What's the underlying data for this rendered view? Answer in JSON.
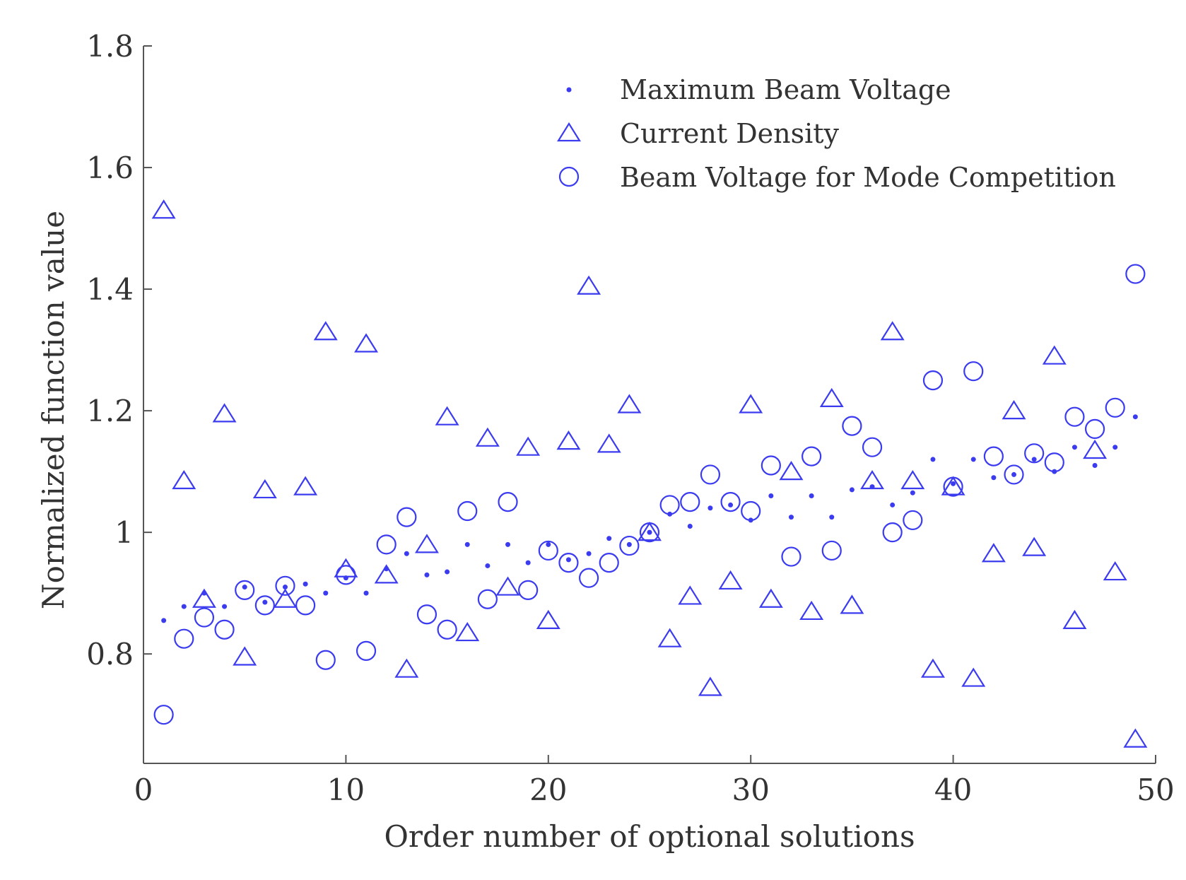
{
  "chart_data": {
    "type": "scatter",
    "title": "",
    "xlabel": "Order number of optional solutions",
    "ylabel": "Normalized function value",
    "xlim": [
      0,
      50
    ],
    "ylim": [
      0.62,
      1.8
    ],
    "xticks": [
      0,
      10,
      20,
      30,
      40,
      50
    ],
    "xtick_labels": [
      "0",
      "10",
      "20",
      "30",
      "40",
      "50"
    ],
    "yticks": [
      0.8,
      1.0,
      1.2,
      1.4,
      1.6,
      1.8
    ],
    "ytick_labels": [
      "0.8",
      "1",
      "1.2",
      "1.4",
      "1.6",
      "1.8"
    ],
    "grid": false,
    "legend_position": "top-right",
    "color": "#3b3bf0",
    "series": [
      {
        "name": "Maximum Beam Voltage",
        "marker": "dot",
        "x": [
          1,
          2,
          3,
          4,
          5,
          6,
          7,
          8,
          9,
          10,
          11,
          12,
          13,
          14,
          15,
          16,
          17,
          18,
          19,
          20,
          21,
          22,
          23,
          24,
          25,
          26,
          27,
          28,
          29,
          30,
          31,
          32,
          33,
          34,
          35,
          36,
          37,
          38,
          39,
          40,
          41,
          42,
          43,
          44,
          45,
          46,
          47,
          48,
          49
        ],
        "y": [
          0.855,
          0.878,
          0.9,
          0.878,
          0.91,
          0.885,
          0.91,
          0.915,
          0.9,
          0.925,
          0.9,
          0.94,
          0.965,
          0.93,
          0.935,
          0.98,
          0.945,
          0.98,
          0.95,
          0.98,
          0.955,
          0.965,
          0.99,
          0.98,
          1.0,
          1.03,
          1.01,
          1.04,
          1.045,
          1.02,
          1.06,
          1.025,
          1.06,
          1.025,
          1.07,
          1.075,
          1.045,
          1.065,
          1.12,
          1.08,
          1.12,
          1.09,
          1.095,
          1.12,
          1.1,
          1.14,
          1.11,
          1.14,
          1.19
        ]
      },
      {
        "name": "Current Density",
        "marker": "triangle",
        "x": [
          1,
          2,
          3,
          4,
          5,
          6,
          7,
          8,
          9,
          10,
          11,
          12,
          13,
          14,
          15,
          16,
          17,
          18,
          19,
          20,
          21,
          22,
          23,
          24,
          25,
          26,
          27,
          28,
          29,
          30,
          31,
          32,
          33,
          34,
          35,
          36,
          37,
          38,
          39,
          40,
          41,
          42,
          43,
          44,
          45,
          46,
          47,
          48,
          49
        ],
        "y": [
          1.53,
          1.085,
          0.89,
          1.195,
          0.795,
          1.07,
          0.89,
          1.075,
          1.33,
          0.94,
          1.31,
          0.93,
          0.775,
          0.98,
          1.19,
          0.835,
          1.155,
          0.91,
          1.14,
          0.855,
          1.15,
          1.405,
          1.145,
          1.21,
          1.0,
          0.825,
          0.895,
          0.745,
          0.92,
          1.21,
          0.89,
          1.1,
          0.87,
          1.22,
          0.88,
          1.085,
          1.33,
          1.085,
          0.775,
          1.075,
          0.76,
          0.965,
          1.2,
          0.975,
          1.29,
          0.855,
          1.135,
          0.935,
          0.66
        ]
      },
      {
        "name": "Beam Voltage for Mode Competition",
        "marker": "circle",
        "x": [
          1,
          2,
          3,
          4,
          5,
          6,
          7,
          8,
          9,
          10,
          11,
          12,
          13,
          14,
          15,
          16,
          17,
          18,
          19,
          20,
          21,
          22,
          23,
          24,
          25,
          26,
          27,
          28,
          29,
          30,
          31,
          32,
          33,
          34,
          35,
          36,
          37,
          38,
          39,
          40,
          41,
          42,
          43,
          44,
          45,
          46,
          47,
          48,
          49
        ],
        "y": [
          0.7,
          0.825,
          0.86,
          0.84,
          0.905,
          0.88,
          0.912,
          0.88,
          0.79,
          0.93,
          0.805,
          0.98,
          1.025,
          0.865,
          0.84,
          1.035,
          0.89,
          1.05,
          0.905,
          0.97,
          0.95,
          0.925,
          0.95,
          0.978,
          1.0,
          1.045,
          1.05,
          1.095,
          1.05,
          1.035,
          1.11,
          0.96,
          1.125,
          0.97,
          1.175,
          1.14,
          1.0,
          1.02,
          1.25,
          1.075,
          1.265,
          1.125,
          1.095,
          1.13,
          1.115,
          1.19,
          1.17,
          1.205,
          1.425
        ]
      }
    ]
  }
}
